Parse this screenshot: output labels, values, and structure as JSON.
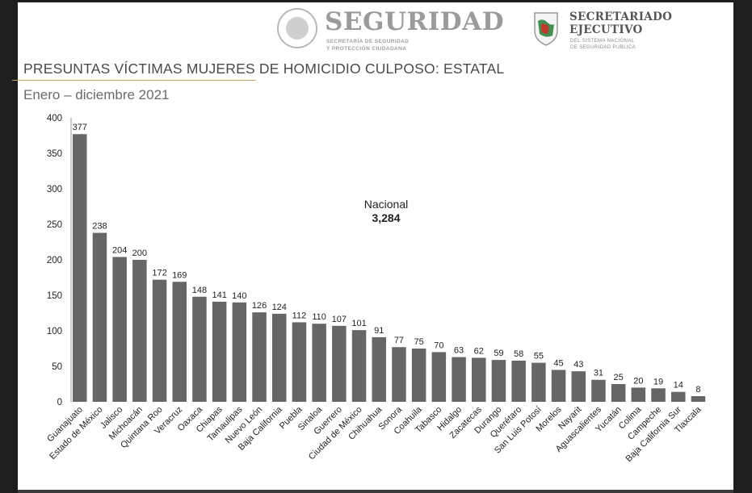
{
  "header": {
    "brand_title": "SEGURIDAD",
    "brand_sub_line1": "SECRETARÍA DE SEGURIDAD",
    "brand_sub_line2": "Y PROTECCIÓN CIUDADANA",
    "se_title_line1": "SECRETARIADO",
    "se_title_line2": "EJECUTIVO",
    "se_sub_line1": "DEL SISTEMA NACIONAL",
    "se_sub_line2": "DE SEGURIDAD PÚBLICA"
  },
  "colors": {
    "bar": "#666666",
    "accent_rule": "#c9a46a"
  },
  "chart_data": {
    "type": "bar",
    "title": "PRESUNTAS VÍCTIMAS MUJERES DE HOMICIDIO CULPOSO: ESTATAL",
    "subtitle": "Enero – diciembre 2021",
    "annotation": {
      "label": "Nacional",
      "value": "3,284"
    },
    "categories": [
      "Guanajuato",
      "Estado de México",
      "Jalisco",
      "Michoacán",
      "Quintana Roo",
      "Veracruz",
      "Oaxaca",
      "Chiapas",
      "Tamaulipas",
      "Nuevo León",
      "Baja California",
      "Puebla",
      "Sinaloa",
      "Guerrero",
      "Ciudad de México",
      "Chihuahua",
      "Sonora",
      "Coahuila",
      "Tabasco",
      "Hidalgo",
      "Zacatecas",
      "Durango",
      "Querétaro",
      "San Luis Potosí",
      "Morelos",
      "Nayarit",
      "Aguascalientes",
      "Yucatán",
      "Colima",
      "Campeche",
      "Baja California Sur",
      "Tlaxcala"
    ],
    "values": [
      377,
      238,
      204,
      200,
      172,
      169,
      148,
      141,
      140,
      126,
      124,
      112,
      110,
      107,
      101,
      91,
      77,
      75,
      70,
      63,
      62,
      59,
      58,
      55,
      45,
      43,
      31,
      25,
      20,
      19,
      14,
      8
    ],
    "yticks": [
      "0",
      "50",
      "100",
      "150",
      "200",
      "250",
      "300",
      "350",
      "400"
    ],
    "ylim": [
      0,
      400
    ],
    "grid": false
  }
}
